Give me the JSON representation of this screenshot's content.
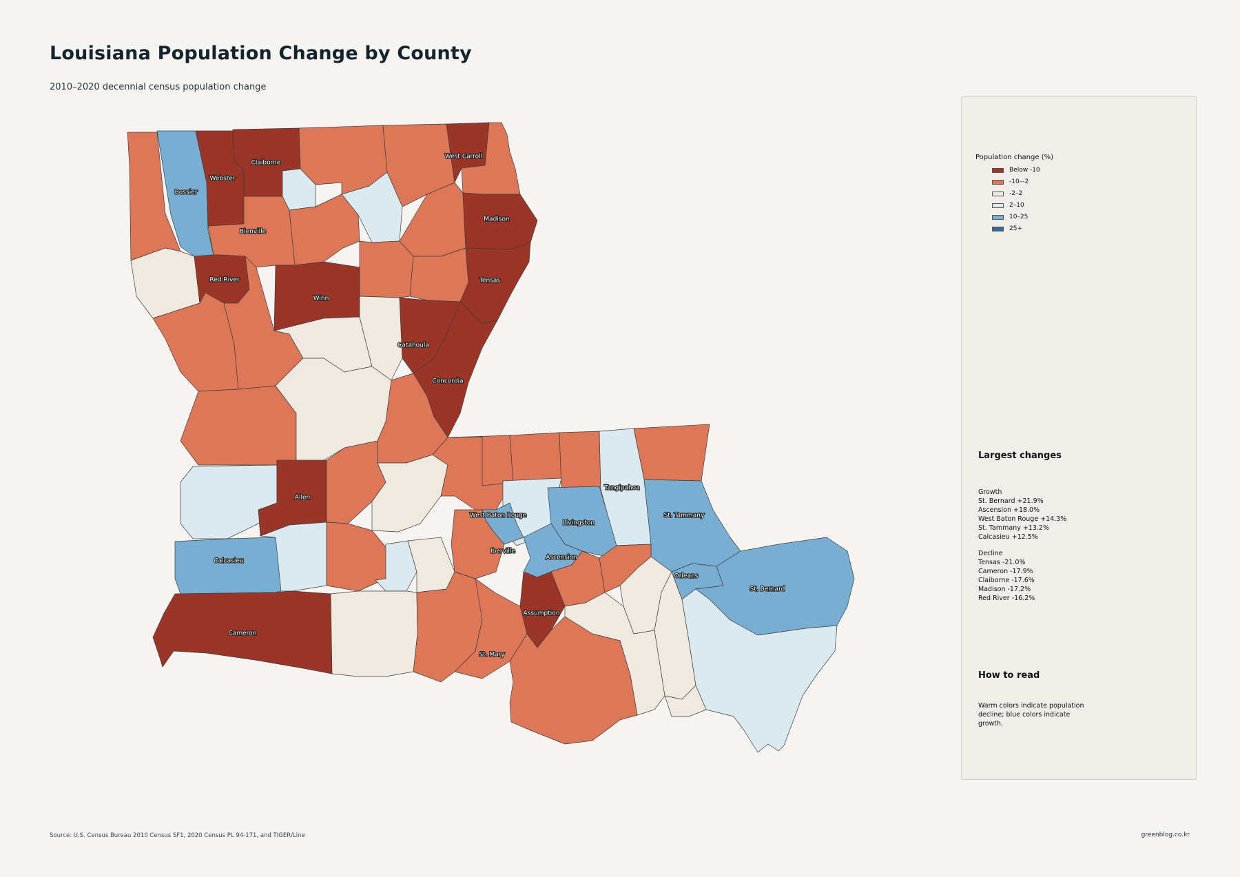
{
  "title": "Louisiana Population Change by County",
  "subtitle": "2010–2020 decennial census population change",
  "legend": {
    "title": "Population change (%)",
    "items": [
      {
        "label": "Below -10",
        "color": "#9b3527"
      },
      {
        "label": "-10–-2",
        "color": "#dd7758"
      },
      {
        "label": "-2–2",
        "color": "#efe9df"
      },
      {
        "label": "2–10",
        "color": "#dbe9f1"
      },
      {
        "label": "10–25",
        "color": "#78aed2"
      },
      {
        "label": "25+",
        "color": "#2b6a9b"
      }
    ]
  },
  "largest_changes": {
    "heading": "Largest changes",
    "growth_heading": "Growth",
    "growth": [
      "St. Bernard  +21.9%",
      "Ascension  +18.0%",
      "West Baton Rouge  +14.3%",
      "St. Tammany  +13.2%",
      "Calcasieu  +12.5%"
    ],
    "decline_heading": "Decline",
    "decline": [
      "Tensas  -21.0%",
      "Cameron  -17.9%",
      "Claiborne  -17.6%",
      "Madison  -17.2%",
      "Red River  -16.2%"
    ]
  },
  "how_to_read": {
    "heading": "How to read",
    "lines": [
      "Warm colors indicate population",
      "decline; blue colors indicate",
      "growth."
    ]
  },
  "county_labels": [
    "Claiborne",
    "West Carroll",
    "Webster",
    "Bossier",
    "Madison",
    "Bienville",
    "Red River",
    "Tensas",
    "Winn",
    "Catahoula",
    "Concordia",
    "Tangipahoa",
    "Allen",
    "West Baton Rouge",
    "Livingston",
    "St. Tammany",
    "Iberville",
    "Calcasieu",
    "Ascension",
    "Orleans",
    "St. Bernard",
    "Assumption",
    "Cameron",
    "St. Mary"
  ],
  "source": "Source: U.S. Census Bureau 2010 Census SF1, 2020 Census PL 94-171, and TIGER/Line",
  "credit": "greenblog.co.kr"
}
